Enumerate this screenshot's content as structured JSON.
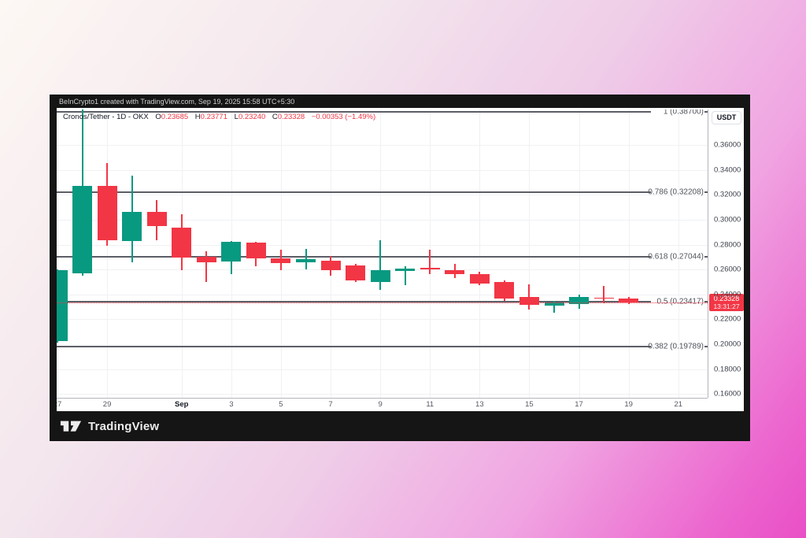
{
  "topbar": {
    "attribution": "BeInCrypto1 created with TradingView.com, Sep 19, 2025 15:58 UTC+5:30"
  },
  "legend": {
    "title": "Cronos/Tether - 1D - OKX",
    "o_label": "O",
    "o_value": "0.23685",
    "h_label": "H",
    "h_value": "0.23771",
    "l_label": "L",
    "l_value": "0.23240",
    "c_label": "C",
    "c_value": "0.23328",
    "change": "−0.00353 (−1.49%)"
  },
  "price_axis": {
    "currency": "USDT",
    "last_price_label": "0.23328",
    "countdown": "13:31:27"
  },
  "footer": {
    "brand": "TradingView"
  },
  "chart_data": {
    "type": "candlestick",
    "symbol": "Cronos/Tether",
    "interval": "1D",
    "exchange": "OKX",
    "quote_currency": "USDT",
    "price_range_top": 0.3886,
    "price_range_bottom": 0.1569,
    "price_axis_ticks": [
      {
        "price": 0.36,
        "label": "0.36000"
      },
      {
        "price": 0.34,
        "label": "0.34000"
      },
      {
        "price": 0.32,
        "label": "0.32000"
      },
      {
        "price": 0.3,
        "label": "0.30000"
      },
      {
        "price": 0.28,
        "label": "0.28000"
      },
      {
        "price": 0.26,
        "label": "0.26000"
      },
      {
        "price": 0.24,
        "label": "0.24000"
      },
      {
        "price": 0.22,
        "label": "0.22000"
      },
      {
        "price": 0.2,
        "label": "0.20000"
      },
      {
        "price": 0.18,
        "label": "0.18000"
      },
      {
        "price": 0.16,
        "label": "0.16000"
      }
    ],
    "x_axis": {
      "slots": 26,
      "labels": [
        {
          "text": "27",
          "i": 0
        },
        {
          "text": "29",
          "i": 2
        },
        {
          "text": "Sep",
          "i": 5,
          "emphasis": true
        },
        {
          "text": "3",
          "i": 7
        },
        {
          "text": "5",
          "i": 9
        },
        {
          "text": "7",
          "i": 11
        },
        {
          "text": "9",
          "i": 13
        },
        {
          "text": "11",
          "i": 15
        },
        {
          "text": "13",
          "i": 17
        },
        {
          "text": "15",
          "i": 19
        },
        {
          "text": "17",
          "i": 21
        },
        {
          "text": "19",
          "i": 23
        },
        {
          "text": "21",
          "i": 25
        }
      ]
    },
    "candles": [
      {
        "date": "Aug 27",
        "o": 0.2025,
        "h": 0.26,
        "l": 0.2015,
        "c": 0.2595
      },
      {
        "date": "Aug 28",
        "o": 0.257,
        "h": 0.3883,
        "l": 0.255,
        "c": 0.3272
      },
      {
        "date": "Aug 29",
        "o": 0.3272,
        "h": 0.3455,
        "l": 0.279,
        "c": 0.2835
      },
      {
        "date": "Aug 30",
        "o": 0.2829,
        "h": 0.3355,
        "l": 0.2658,
        "c": 0.3063
      },
      {
        "date": "Aug 31",
        "o": 0.3063,
        "h": 0.3158,
        "l": 0.2835,
        "c": 0.2949
      },
      {
        "date": "Sep 1",
        "o": 0.2937,
        "h": 0.3044,
        "l": 0.2595,
        "c": 0.2697
      },
      {
        "date": "Sep 2",
        "o": 0.2703,
        "h": 0.2747,
        "l": 0.25,
        "c": 0.2658
      },
      {
        "date": "Sep 3",
        "o": 0.2664,
        "h": 0.283,
        "l": 0.2563,
        "c": 0.2822
      },
      {
        "date": "Sep 4",
        "o": 0.2816,
        "h": 0.2822,
        "l": 0.2627,
        "c": 0.269
      },
      {
        "date": "Sep 5",
        "o": 0.269,
        "h": 0.276,
        "l": 0.2595,
        "c": 0.2652
      },
      {
        "date": "Sep 6",
        "o": 0.2658,
        "h": 0.2766,
        "l": 0.2601,
        "c": 0.2683
      },
      {
        "date": "Sep 7",
        "o": 0.2671,
        "h": 0.2709,
        "l": 0.2551,
        "c": 0.2595
      },
      {
        "date": "Sep 8",
        "o": 0.2633,
        "h": 0.2646,
        "l": 0.25,
        "c": 0.2513
      },
      {
        "date": "Sep 9",
        "o": 0.25,
        "h": 0.2835,
        "l": 0.2437,
        "c": 0.2595
      },
      {
        "date": "Sep 10",
        "o": 0.2589,
        "h": 0.2627,
        "l": 0.2475,
        "c": 0.2608
      },
      {
        "date": "Sep 11",
        "o": 0.2614,
        "h": 0.276,
        "l": 0.2563,
        "c": 0.2601
      },
      {
        "date": "Sep 12",
        "o": 0.2595,
        "h": 0.2646,
        "l": 0.2532,
        "c": 0.2563
      },
      {
        "date": "Sep 13",
        "o": 0.2563,
        "h": 0.2582,
        "l": 0.2475,
        "c": 0.2488
      },
      {
        "date": "Sep 14",
        "o": 0.25,
        "h": 0.2513,
        "l": 0.2348,
        "c": 0.2367
      },
      {
        "date": "Sep 15",
        "o": 0.238,
        "h": 0.2481,
        "l": 0.2279,
        "c": 0.2317
      },
      {
        "date": "Sep 16",
        "o": 0.231,
        "h": 0.2348,
        "l": 0.2253,
        "c": 0.2335
      },
      {
        "date": "Sep 17",
        "o": 0.2323,
        "h": 0.2399,
        "l": 0.2285,
        "c": 0.238
      },
      {
        "date": "Sep 18",
        "o": 0.2373,
        "h": 0.2468,
        "l": 0.2329,
        "c": 0.2364
      },
      {
        "date": "Sep 19",
        "o": 0.23685,
        "h": 0.23771,
        "l": 0.2324,
        "c": 0.23328
      }
    ],
    "fib_levels": [
      {
        "label": "1 (0.38700)",
        "price": 0.387
      },
      {
        "label": "0.786 (0.32208)",
        "price": 0.32208
      },
      {
        "label": "0.618 (0.27044)",
        "price": 0.27044
      },
      {
        "label": "0.5 (0.23417)",
        "price": 0.23417
      },
      {
        "label": "0.382 (0.19789)",
        "price": 0.19789
      }
    ],
    "last_price": {
      "value": 0.23328,
      "label": "0.23328",
      "countdown": "13:31:27",
      "direction": "down"
    },
    "colors": {
      "up": "#089981",
      "down": "#f23645",
      "fib": "#5b5e66",
      "fib_text": "#50535b",
      "grid": "#f0f1f4",
      "axis_border": "#b2b5be",
      "last_price": "#f23645"
    }
  }
}
